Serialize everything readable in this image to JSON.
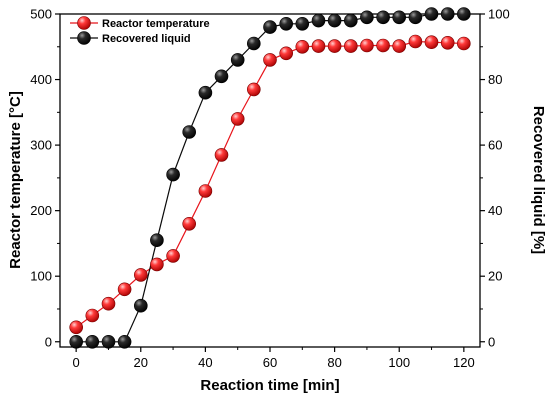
{
  "chart_data": {
    "type": "scatter",
    "x": [
      0,
      5,
      10,
      15,
      20,
      25,
      30,
      35,
      40,
      45,
      50,
      55,
      60,
      65,
      70,
      75,
      80,
      85,
      90,
      95,
      100,
      105,
      110,
      115,
      120
    ],
    "series": [
      {
        "name": "Reactor temperature",
        "axis": "left",
        "color": "#e8141b",
        "values": [
          22,
          40,
          58,
          80,
          102,
          118,
          131,
          180,
          230,
          285,
          340,
          385,
          430,
          440,
          450,
          451,
          451,
          451,
          452,
          452,
          451,
          458,
          457,
          456,
          455
        ]
      },
      {
        "name": "Recovered liquid",
        "axis": "right",
        "color": "#0a0a0a",
        "values": [
          0,
          0,
          0,
          0,
          11,
          31,
          51,
          64,
          76,
          81,
          86,
          91,
          96,
          97,
          97,
          98,
          98,
          98,
          99,
          99,
          99,
          99,
          100,
          100,
          100
        ]
      }
    ],
    "xlabel": "Reaction time [min]",
    "ylabel_left": "Reactor temperature [°C]",
    "ylabel_right": "Recovered liquid [%]",
    "xlim": [
      -5,
      125
    ],
    "ylim_left": [
      -8,
      500
    ],
    "ylim_right": [
      -1.6,
      100
    ],
    "xticks": [
      0,
      20,
      40,
      60,
      80,
      100,
      120
    ],
    "yticks_left": [
      0,
      100,
      200,
      300,
      400,
      500
    ],
    "yticks_right": [
      0,
      20,
      40,
      60,
      80,
      100
    ],
    "grid": false,
    "legend_position": "top-left"
  }
}
